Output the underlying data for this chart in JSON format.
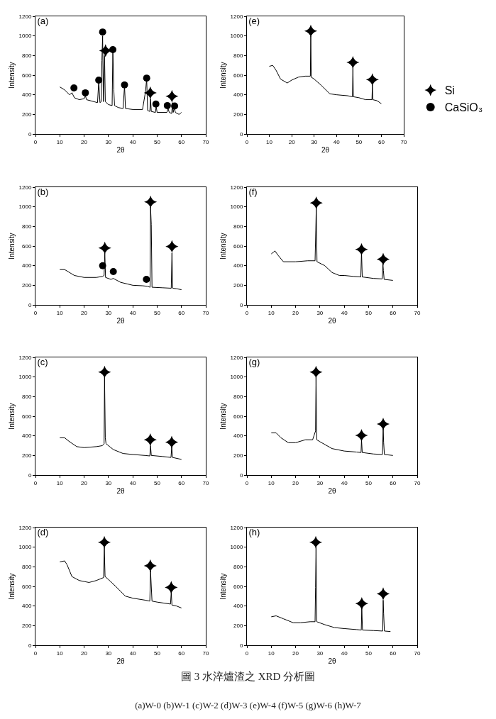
{
  "chart_data": [
    {
      "type": "line",
      "title": "(a)",
      "xlabel": "2θ",
      "ylabel": "Intensity",
      "xlim": [
        0,
        70
      ],
      "xticks": [
        0,
        10,
        20,
        30,
        40,
        50,
        60,
        70
      ],
      "ylim": [
        0,
        1200
      ],
      "yticks": [
        0,
        200,
        400,
        600,
        800,
        1000,
        1200
      ],
      "grid": false,
      "legend": false,
      "series": [
        {
          "type": "line",
          "color": "#000000",
          "marker": "none",
          "x": [
            10,
            12,
            14,
            15,
            16,
            18,
            20,
            20.5,
            21,
            24,
            25.5,
            26,
            26.5,
            27,
            27.3,
            27.6,
            27.9,
            28.4,
            28.7,
            30,
            31.5,
            31.8,
            32.2,
            32.5,
            34,
            36,
            36.6,
            37,
            40,
            44,
            45.2,
            45.7,
            46.1,
            47,
            47.3,
            47.6,
            49.3,
            49.6,
            50,
            54,
            54.5,
            55,
            56,
            56.3,
            56.6,
            57.1,
            57.5,
            59,
            60
          ],
          "values": [
            480,
            450,
            400,
            420,
            370,
            350,
            360,
            390,
            350,
            330,
            320,
            540,
            320,
            330,
            750,
            1000,
            330,
            800,
            330,
            300,
            290,
            850,
            450,
            290,
            270,
            260,
            490,
            260,
            250,
            250,
            430,
            560,
            240,
            230,
            360,
            230,
            220,
            280,
            220,
            220,
            260,
            220,
            210,
            320,
            220,
            270,
            220,
            200,
            220
          ]
        },
        {
          "type": "scatter",
          "color": "#000000",
          "marker": "circle",
          "x": [
            15.8,
            20.5,
            26,
            27.6,
            31.8,
            36.6,
            45.7,
            49.5,
            54.2,
            57.2
          ],
          "values": [
            470,
            420,
            550,
            1040,
            860,
            500,
            570,
            305,
            290,
            285
          ]
        },
        {
          "type": "scatter",
          "color": "#000000",
          "marker": "star",
          "x": [
            28.8,
            47.2,
            56.1
          ],
          "values": [
            850,
            420,
            385
          ]
        }
      ]
    },
    {
      "type": "line",
      "title": "(b)",
      "xlabel": "2θ",
      "ylabel": "Intensity",
      "xlim": [
        0,
        70
      ],
      "xticks": [
        0,
        10,
        20,
        30,
        40,
        50,
        60,
        70
      ],
      "ylim": [
        0,
        1200
      ],
      "yticks": [
        0,
        200,
        400,
        600,
        800,
        1000,
        1200
      ],
      "grid": false,
      "legend": false,
      "series": [
        {
          "type": "line",
          "color": "#000000",
          "marker": "none",
          "x": [
            10,
            12,
            14,
            16,
            20,
            25,
            27.5,
            28.2,
            28.5,
            28.8,
            31,
            32,
            35,
            40,
            44,
            46,
            47.1,
            47.3,
            47.6,
            47.9,
            52,
            55.8,
            56.1,
            56.4,
            58,
            60
          ],
          "values": [
            360,
            360,
            330,
            300,
            280,
            280,
            290,
            300,
            530,
            280,
            260,
            270,
            230,
            200,
            195,
            190,
            180,
            1000,
            820,
            180,
            175,
            170,
            530,
            170,
            165,
            155
          ]
        },
        {
          "type": "scatter",
          "color": "#000000",
          "marker": "circle",
          "x": [
            27.6,
            32,
            45.6
          ],
          "values": [
            400,
            340,
            260
          ]
        },
        {
          "type": "scatter",
          "color": "#000000",
          "marker": "star",
          "x": [
            28.5,
            47.3,
            56.1
          ],
          "values": [
            580,
            1050,
            595
          ]
        }
      ]
    },
    {
      "type": "line",
      "title": "(c)",
      "xlabel": "2θ",
      "ylabel": "Intensity",
      "xlim": [
        0,
        70
      ],
      "xticks": [
        0,
        10,
        20,
        30,
        40,
        50,
        60,
        70
      ],
      "ylim": [
        0,
        1200
      ],
      "yticks": [
        0,
        200,
        400,
        600,
        800,
        1000,
        1200
      ],
      "grid": false,
      "legend": false,
      "series": [
        {
          "type": "line",
          "color": "#000000",
          "marker": "none",
          "x": [
            10,
            12,
            14,
            17,
            20,
            25,
            27.5,
            28.2,
            28.4,
            28.7,
            29,
            32,
            36,
            40,
            45,
            47,
            47.3,
            47.6,
            52,
            55.7,
            56,
            56.3,
            60
          ],
          "values": [
            380,
            380,
            340,
            290,
            280,
            290,
            300,
            320,
            1000,
            380,
            320,
            260,
            220,
            210,
            200,
            195,
            300,
            200,
            190,
            180,
            290,
            180,
            160
          ]
        },
        {
          "type": "scatter",
          "color": "#000000",
          "marker": "star",
          "x": [
            28.4,
            47.2,
            56
          ],
          "values": [
            1050,
            360,
            335
          ]
        }
      ]
    },
    {
      "type": "line",
      "title": "(d)",
      "xlabel": "2θ",
      "ylabel": "Intensity",
      "xlim": [
        0,
        70
      ],
      "xticks": [
        0,
        10,
        20,
        30,
        40,
        50,
        60,
        70
      ],
      "ylim": [
        0,
        1200
      ],
      "yticks": [
        0,
        200,
        400,
        600,
        800,
        1000,
        1200
      ],
      "grid": false,
      "legend": false,
      "series": [
        {
          "type": "line",
          "color": "#000000",
          "marker": "none",
          "x": [
            10,
            12,
            13,
            15,
            18,
            20,
            22,
            25,
            28,
            28.3,
            28.6,
            30,
            33,
            37,
            40,
            45,
            47,
            47.3,
            47.6,
            47.9,
            50,
            55.5,
            55.8,
            56.1,
            58,
            60
          ],
          "values": [
            850,
            860,
            820,
            700,
            660,
            650,
            640,
            660,
            690,
            1000,
            700,
            670,
            600,
            500,
            480,
            460,
            450,
            760,
            600,
            450,
            440,
            420,
            540,
            410,
            400,
            380
          ]
        },
        {
          "type": "scatter",
          "color": "#000000",
          "marker": "star",
          "x": [
            28.3,
            47.2,
            55.8
          ],
          "values": [
            1050,
            810,
            590
          ]
        }
      ]
    },
    {
      "type": "line",
      "title": "(e)",
      "xlabel": "2θ",
      "ylabel": "Intensity",
      "xlim": [
        0,
        70
      ],
      "xticks": [
        0,
        10,
        20,
        30,
        40,
        50,
        60,
        70
      ],
      "ylim": [
        0,
        1200
      ],
      "yticks": [
        0,
        200,
        400,
        600,
        800,
        1000,
        1200
      ],
      "grid": false,
      "legend": "right",
      "series": [
        {
          "type": "line",
          "color": "#000000",
          "marker": "none",
          "x": [
            10,
            11.5,
            13,
            15,
            18,
            20,
            23,
            26,
            28.3,
            28.5,
            28.7,
            30,
            33,
            37,
            40,
            45,
            47.1,
            47.3,
            47.5,
            50,
            53,
            55.8,
            56,
            56.2,
            58,
            60
          ],
          "values": [
            690,
            700,
            650,
            560,
            520,
            550,
            580,
            590,
            590,
            1000,
            580,
            560,
            500,
            410,
            400,
            390,
            380,
            680,
            380,
            370,
            350,
            350,
            500,
            350,
            340,
            310
          ]
        },
        {
          "type": "scatter",
          "name": "Si",
          "color": "#000000",
          "marker": "star",
          "x": [
            28.5,
            47.3,
            56
          ],
          "values": [
            1050,
            730,
            555
          ]
        },
        {
          "type": "scatter",
          "name": "CaSiO₃",
          "color": "#000000",
          "marker": "circle"
        }
      ]
    },
    {
      "type": "line",
      "title": "(f)",
      "xlabel": "2θ",
      "ylabel": "Intensity",
      "xlim": [
        0,
        70
      ],
      "xticks": [
        0,
        10,
        20,
        30,
        40,
        50,
        60,
        70
      ],
      "ylim": [
        0,
        1200
      ],
      "yticks": [
        0,
        200,
        400,
        600,
        800,
        1000,
        1200
      ],
      "grid": false,
      "legend": false,
      "series": [
        {
          "type": "line",
          "color": "#000000",
          "marker": "none",
          "x": [
            10,
            11.5,
            13,
            15,
            20,
            25,
            28,
            28.3,
            28.5,
            28.8,
            32,
            35,
            38,
            40,
            44,
            46.8,
            47.1,
            47.4,
            52,
            55.6,
            55.9,
            56.1,
            56.4,
            60
          ],
          "values": [
            520,
            550,
            500,
            440,
            440,
            450,
            450,
            760,
            1000,
            440,
            400,
            330,
            300,
            300,
            290,
            285,
            540,
            285,
            270,
            265,
            420,
            350,
            260,
            250
          ]
        },
        {
          "type": "scatter",
          "color": "#000000",
          "marker": "star",
          "x": [
            28.5,
            47.1,
            56
          ],
          "values": [
            1040,
            565,
            465
          ]
        }
      ]
    },
    {
      "type": "line",
      "title": "(g)",
      "xlabel": "2θ",
      "ylabel": "Intensity",
      "xlim": [
        0,
        70
      ],
      "xticks": [
        0,
        10,
        20,
        30,
        40,
        50,
        60,
        70
      ],
      "ylim": [
        0,
        1200
      ],
      "yticks": [
        0,
        200,
        400,
        600,
        800,
        1000,
        1200
      ],
      "grid": false,
      "legend": false,
      "series": [
        {
          "type": "line",
          "color": "#000000",
          "marker": "none",
          "x": [
            10,
            12,
            14,
            17,
            20,
            24,
            27,
            28.2,
            28.4,
            28.7,
            30,
            35,
            40,
            45,
            46.9,
            47.1,
            47.4,
            52,
            55.7,
            56,
            56.2,
            56.5,
            60
          ],
          "values": [
            430,
            430,
            380,
            330,
            330,
            360,
            360,
            450,
            1000,
            360,
            340,
            270,
            245,
            235,
            230,
            360,
            230,
            215,
            210,
            480,
            330,
            210,
            200
          ]
        },
        {
          "type": "scatter",
          "color": "#000000",
          "marker": "star",
          "x": [
            28.4,
            47.1,
            56
          ],
          "values": [
            1050,
            405,
            520
          ]
        }
      ]
    },
    {
      "type": "line",
      "title": "(h)",
      "xlabel": "2θ",
      "ylabel": "Intensity",
      "xlim": [
        0,
        70
      ],
      "xticks": [
        0,
        10,
        20,
        30,
        40,
        50,
        60,
        70
      ],
      "ylim": [
        0,
        1200
      ],
      "yticks": [
        0,
        200,
        400,
        600,
        800,
        1000,
        1200
      ],
      "grid": false,
      "legend": false,
      "series": [
        {
          "type": "line",
          "color": "#000000",
          "marker": "none",
          "x": [
            10,
            12,
            15,
            19,
            22,
            26,
            28,
            28.2,
            28.4,
            28.7,
            32,
            36,
            40,
            45,
            47,
            47.2,
            47.5,
            52,
            55.8,
            56,
            56.2,
            56.5,
            59
          ],
          "values": [
            290,
            300,
            270,
            230,
            230,
            240,
            240,
            590,
            1000,
            240,
            210,
            180,
            170,
            160,
            155,
            380,
            155,
            150,
            145,
            460,
            320,
            145,
            140
          ]
        },
        {
          "type": "scatter",
          "color": "#000000",
          "marker": "star",
          "x": [
            28.3,
            47.2,
            56
          ],
          "values": [
            1050,
            425,
            525
          ]
        }
      ]
    },
    {
      "type": "other",
      "title": "圖 3 水淬爐渣之 XRD 分析圖",
      "subtitle": "(a)W-0 (b)W-1 (c)W-2 (d)W-3 (e)W-4 (f)W-5 (g)W-6 (h)W-7"
    }
  ]
}
